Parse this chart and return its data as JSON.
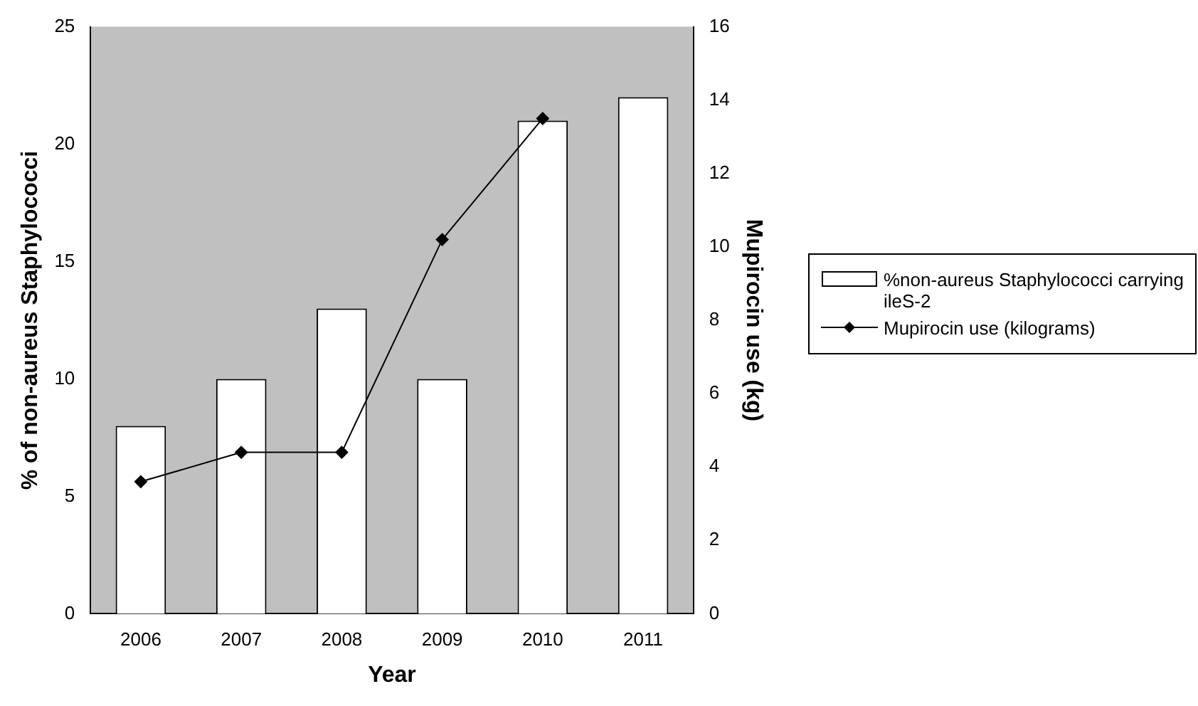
{
  "chart_data": {
    "type": "bar",
    "xlabel": "Year",
    "ylabel": "% of non-aureus Staphylococci",
    "y2label": "Mupirocin use (kg)",
    "categories": [
      "2006",
      "2007",
      "2008",
      "2009",
      "2010",
      "2011"
    ],
    "series": [
      {
        "name": "%non-aureus Staphylococci carrying ileS-2",
        "color": "#ffffff",
        "values": [
          8,
          10,
          13,
          10,
          21,
          22
        ]
      },
      {
        "name": "Mupirocin use (kilograms)",
        "type": "line",
        "axis": "y2",
        "color": "#000000",
        "marker": "diamond",
        "values": [
          3.6,
          4.4,
          4.4,
          10.2,
          13.5,
          null
        ]
      }
    ],
    "ylim": [
      0,
      25
    ],
    "yticks": [
      0,
      5,
      10,
      15,
      20,
      25
    ],
    "y2lim": [
      0,
      16
    ],
    "y2ticks": [
      0,
      2,
      4,
      6,
      8,
      10,
      12,
      14,
      16
    ],
    "grid": false,
    "legend": "right"
  }
}
